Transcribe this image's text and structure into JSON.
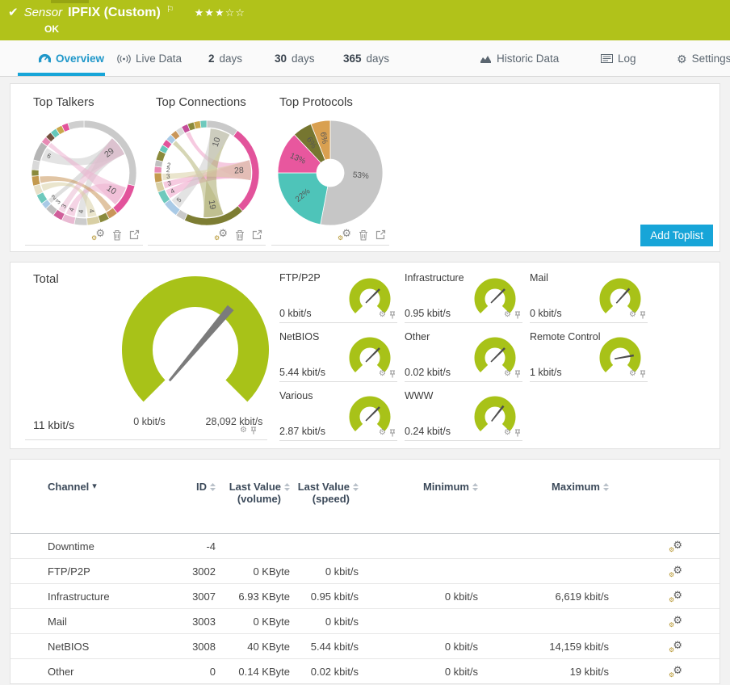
{
  "colors": {
    "header-green": "#b1c21a",
    "header-green-dark": "#97a513",
    "accent-blue": "#17a5d8",
    "gauge-green": "#a8c218",
    "needle-gray": "#7b7b7b"
  },
  "icons": {
    "check": "✔",
    "flag": "⚐",
    "gear": "⚙",
    "caret_down": "▾"
  },
  "header": {
    "kind": "Sensor",
    "title": "IPFIX (Custom)",
    "status": "OK",
    "stars": "★★★☆☆"
  },
  "tabs": [
    {
      "label": "Overview",
      "active": true
    },
    {
      "label": "Live Data"
    },
    {
      "num": "2",
      "label": "days"
    },
    {
      "num": "30",
      "label": "days"
    },
    {
      "num": "365",
      "label": "days"
    },
    {
      "label": "Historic Data"
    },
    {
      "label": "Log"
    },
    {
      "label": "Settings"
    }
  ],
  "toplists": {
    "titles": [
      "Top Talkers",
      "Top Connections",
      "Top Protocols"
    ],
    "add_button": "Add Toplist"
  },
  "chart_data": [
    {
      "type": "chord",
      "title": "Top Talkers",
      "segments": [
        {
          "label": "29",
          "value": 29,
          "color": "#cacaca"
        },
        {
          "label": "10",
          "value": 10,
          "color": "#e2539b"
        },
        {
          "label": "",
          "value": 3,
          "color": "#c9965a"
        },
        {
          "label": "",
          "value": 3,
          "color": "#8a8a3c"
        },
        {
          "label": "4",
          "value": 4,
          "color": "#d8cfa4"
        },
        {
          "label": "4",
          "value": 4,
          "color": "#cccccc"
        },
        {
          "label": "4",
          "value": 4,
          "color": "#e9b9d2"
        },
        {
          "label": "3",
          "value": 3,
          "color": "#d05e9a"
        },
        {
          "label": "3",
          "value": 3,
          "color": "#bfbfbf"
        },
        {
          "label": "2",
          "value": 2,
          "color": "#a9cae6"
        },
        {
          "label": "",
          "value": 3,
          "color": "#6ec9bd"
        },
        {
          "label": "",
          "value": 3,
          "color": "#e7e0c8"
        },
        {
          "label": "",
          "value": 3,
          "color": "#c49a4e"
        },
        {
          "label": "",
          "value": 2,
          "color": "#8a8a3c"
        },
        {
          "label": "",
          "value": 3,
          "color": "#d9d9d9"
        },
        {
          "label": "6",
          "value": 6,
          "color": "#b5b5b5"
        },
        {
          "label": "",
          "value": 2,
          "color": "#e78ab4"
        },
        {
          "label": "",
          "value": 2,
          "color": "#74513e"
        },
        {
          "label": "",
          "value": 2,
          "color": "#66c7ba"
        },
        {
          "label": "",
          "value": 2,
          "color": "#c9a84c"
        },
        {
          "label": "",
          "value": 2,
          "color": "#e2539b"
        },
        {
          "label": "",
          "value": 5,
          "color": "#cfcfcf"
        }
      ],
      "ribbons": [
        {
          "from": 0,
          "to": 15,
          "color": "#cccccc"
        },
        {
          "from": 0,
          "to": 5,
          "color": "#cccccc"
        },
        {
          "from": 0,
          "to": 9,
          "color": "#c4c4c4"
        },
        {
          "from": 1,
          "to": 6,
          "color": "#edb0cf"
        },
        {
          "from": 1,
          "to": 16,
          "color": "#edb0cf"
        },
        {
          "from": 4,
          "to": 11,
          "color": "#d8cfa4"
        },
        {
          "from": 2,
          "to": 12,
          "color": "#c9965a"
        },
        {
          "from": 7,
          "to": 0,
          "color": "#e9b9d2"
        }
      ]
    },
    {
      "type": "chord",
      "title": "Top Connections",
      "segments": [
        {
          "label": "10",
          "value": 10,
          "color": "#c9c9c9"
        },
        {
          "label": "28",
          "value": 28,
          "color": "#e2539b"
        },
        {
          "label": "19",
          "value": 19,
          "color": "#7d7d33"
        },
        {
          "label": "",
          "value": 3,
          "color": "#c9c9c9"
        },
        {
          "label": "5",
          "value": 5,
          "color": "#a9cae6"
        },
        {
          "label": "4",
          "value": 4,
          "color": "#6ec9bd"
        },
        {
          "label": "3",
          "value": 3,
          "color": "#d8cfa4"
        },
        {
          "label": "3",
          "value": 3,
          "color": "#c49a4e"
        },
        {
          "label": "2",
          "value": 2,
          "color": "#e78ab4"
        },
        {
          "label": "2",
          "value": 2,
          "color": "#bfbfbf"
        },
        {
          "label": "",
          "value": 3,
          "color": "#8a8a3c"
        },
        {
          "label": "",
          "value": 2,
          "color": "#66c7ba"
        },
        {
          "label": "",
          "value": 2,
          "color": "#e2539b"
        },
        {
          "label": "",
          "value": 2,
          "color": "#a9cae6"
        },
        {
          "label": "",
          "value": 2,
          "color": "#c9965a"
        },
        {
          "label": "",
          "value": 2,
          "color": "#d9d9d9"
        },
        {
          "label": "",
          "value": 2,
          "color": "#c44d9a"
        },
        {
          "label": "",
          "value": 2,
          "color": "#8a8a3c"
        },
        {
          "label": "",
          "value": 2,
          "color": "#c9a84c"
        },
        {
          "label": "",
          "value": 2,
          "color": "#6ec9bd"
        }
      ],
      "ribbons": [
        {
          "from": 1,
          "to": 5,
          "color": "#ef9ec7"
        },
        {
          "from": 1,
          "to": 16,
          "color": "#ef9ec7"
        },
        {
          "from": 1,
          "to": 6,
          "color": "#ef9ec7"
        },
        {
          "from": 2,
          "to": 0,
          "color": "#a8a86a"
        },
        {
          "from": 2,
          "to": 13,
          "color": "#b5b578"
        },
        {
          "from": 0,
          "to": 4,
          "color": "#cccccc"
        },
        {
          "from": 7,
          "to": 1,
          "color": "#d8cfa4"
        }
      ]
    },
    {
      "type": "donut",
      "title": "Top Protocols",
      "slices": [
        {
          "label": "53%",
          "value": 53,
          "color": "#c6c6c6"
        },
        {
          "label": "22%",
          "value": 22,
          "color": "#4ec4b9"
        },
        {
          "label": "13%",
          "value": 13,
          "color": "#e8579e"
        },
        {
          "label": "6%",
          "value": 6,
          "color": "#767630"
        },
        {
          "label": "6%",
          "value": 6,
          "color": "#d9a050"
        }
      ]
    }
  ],
  "gauges": {
    "total": {
      "label": "Total",
      "value": "11 kbit/s",
      "min": "0 kbit/s",
      "max": "28,092 kbit/s",
      "needle_deg": 40
    },
    "channels": [
      {
        "label": "FTP/P2P",
        "value": "0 kbit/s",
        "needle_deg": 45
      },
      {
        "label": "Infrastructure",
        "value": "0.95 kbit/s",
        "needle_deg": 45
      },
      {
        "label": "Mail",
        "value": "0 kbit/s",
        "needle_deg": 42
      },
      {
        "label": "NetBIOS",
        "value": "5.44 kbit/s",
        "needle_deg": 45
      },
      {
        "label": "Other",
        "value": "0.02 kbit/s",
        "needle_deg": 45
      },
      {
        "label": "Remote Control",
        "value": "1 kbit/s",
        "needle_deg": 80
      },
      {
        "label": "Various",
        "value": "2.87 kbit/s",
        "needle_deg": 45
      },
      {
        "label": "WWW",
        "value": "0.24 kbit/s",
        "needle_deg": 38
      }
    ]
  },
  "table": {
    "columns": {
      "channel": "Channel",
      "id": "ID",
      "volume": "Last Value (volume)",
      "speed": "Last Value (speed)",
      "min": "Minimum",
      "max": "Maximum"
    },
    "rows": [
      {
        "channel": "Downtime",
        "id": "-4",
        "volume": "",
        "speed": "",
        "min": "",
        "max": ""
      },
      {
        "channel": "FTP/P2P",
        "id": "3002",
        "volume": "0 KByte",
        "speed": "0 kbit/s",
        "min": "",
        "max": ""
      },
      {
        "channel": "Infrastructure",
        "id": "3007",
        "volume": "6.93 KByte",
        "speed": "0.95 kbit/s",
        "min": "0 kbit/s",
        "max": "6,619 kbit/s"
      },
      {
        "channel": "Mail",
        "id": "3003",
        "volume": "0 KByte",
        "speed": "0 kbit/s",
        "min": "",
        "max": ""
      },
      {
        "channel": "NetBIOS",
        "id": "3008",
        "volume": "40 KByte",
        "speed": "5.44 kbit/s",
        "min": "0 kbit/s",
        "max": "14,159 kbit/s"
      },
      {
        "channel": "Other",
        "id": "0",
        "volume": "0.14 KByte",
        "speed": "0.02 kbit/s",
        "min": "0 kbit/s",
        "max": "19 kbit/s"
      }
    ]
  }
}
